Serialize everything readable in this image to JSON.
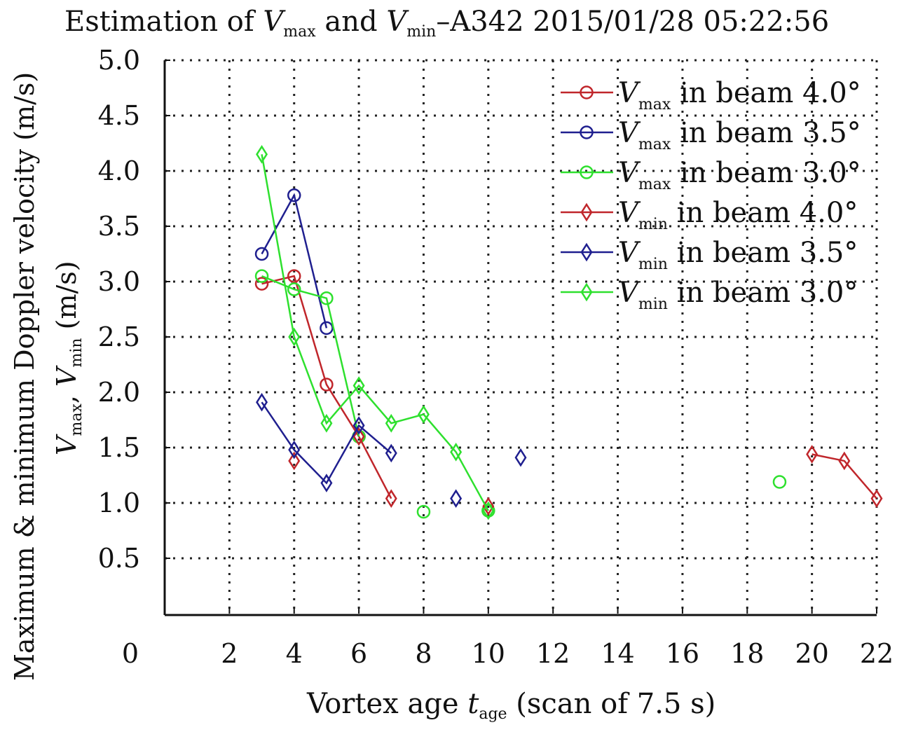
{
  "chart_data": {
    "type": "line",
    "title": {
      "prefix": "Estimation of ",
      "v1": "V",
      "s1": "max",
      "mid": " and ",
      "v2": "V",
      "s2": "min",
      "suffix": "–A342 2015/01/28 05:22:56"
    },
    "xlabel": {
      "prefix": "Vortex age ",
      "var": "t",
      "sub": "age",
      "suffix": " (scan of 7.5 s)"
    },
    "ylabel": {
      "main": "Maximum & minimum Doppler velocity (m/s)",
      "v1": "V",
      "s1": "max",
      "mid": ", ",
      "v2": "V",
      "s2": "min",
      "suffix": " (m/s)"
    },
    "xlim": [
      0,
      22
    ],
    "ylim": [
      0,
      5
    ],
    "xticks": [
      "0",
      "2",
      "4",
      "6",
      "8",
      "10",
      "12",
      "14",
      "16",
      "18",
      "20",
      "22"
    ],
    "yticks": [
      "0.5",
      "1.0",
      "1.5",
      "2.0",
      "2.5",
      "3.0",
      "3.5",
      "4.0",
      "4.5",
      "5.0"
    ],
    "grid": true,
    "legend_position": "top-right",
    "series": [
      {
        "name": {
          "v": "V",
          "sub": "max",
          "text": " in beam 4.0°"
        },
        "color": "#c0262b",
        "marker": "circle",
        "points": [
          [
            3,
            2.98
          ],
          [
            4,
            3.05
          ],
          [
            5,
            2.07
          ],
          [
            6,
            1.6
          ]
        ]
      },
      {
        "name": {
          "v": "V",
          "sub": "max",
          "text": " in beam 3.5°"
        },
        "color": "#1f1f8f",
        "marker": "circle",
        "points": [
          [
            3,
            3.25
          ],
          [
            4,
            3.78
          ],
          [
            5,
            2.58
          ]
        ]
      },
      {
        "name": {
          "v": "V",
          "sub": "max",
          "text": " in beam 3.0°"
        },
        "color": "#2ee02e",
        "marker": "circle",
        "points": [
          [
            3,
            3.05
          ],
          [
            4,
            2.93
          ],
          [
            5,
            2.85
          ],
          [
            6,
            1.6
          ],
          null,
          [
            8,
            0.92
          ],
          null,
          [
            10,
            0.93
          ],
          null,
          [
            19,
            1.19
          ]
        ]
      },
      {
        "name": {
          "v": "V",
          "sub": "min",
          "text": " in beam 4.0°"
        },
        "color": "#c0262b",
        "marker": "diamond",
        "points": [
          [
            4,
            1.38
          ],
          null,
          [
            6,
            1.6
          ],
          [
            7,
            1.04
          ],
          null,
          [
            10,
            0.97
          ],
          null,
          [
            20,
            1.44
          ],
          [
            21,
            1.38
          ],
          [
            22,
            1.04
          ]
        ]
      },
      {
        "name": {
          "v": "V",
          "sub": "min",
          "text": " in beam 3.5°"
        },
        "color": "#1f1f8f",
        "marker": "diamond",
        "points": [
          [
            3,
            1.91
          ],
          [
            4,
            1.48
          ],
          [
            5,
            1.18
          ],
          [
            6,
            1.7
          ],
          [
            7,
            1.45
          ],
          null,
          [
            9,
            1.04
          ],
          null,
          [
            11,
            1.41
          ]
        ]
      },
      {
        "name": {
          "v": "V",
          "sub": "min",
          "text": " in beam 3.0°"
        },
        "color": "#2ee02e",
        "marker": "diamond",
        "points": [
          [
            3,
            4.15
          ],
          [
            4,
            2.5
          ],
          [
            5,
            1.72
          ],
          [
            6,
            2.06
          ],
          [
            7,
            1.72
          ],
          [
            8,
            1.8
          ],
          [
            9,
            1.46
          ],
          [
            10,
            0.93
          ]
        ]
      }
    ]
  }
}
